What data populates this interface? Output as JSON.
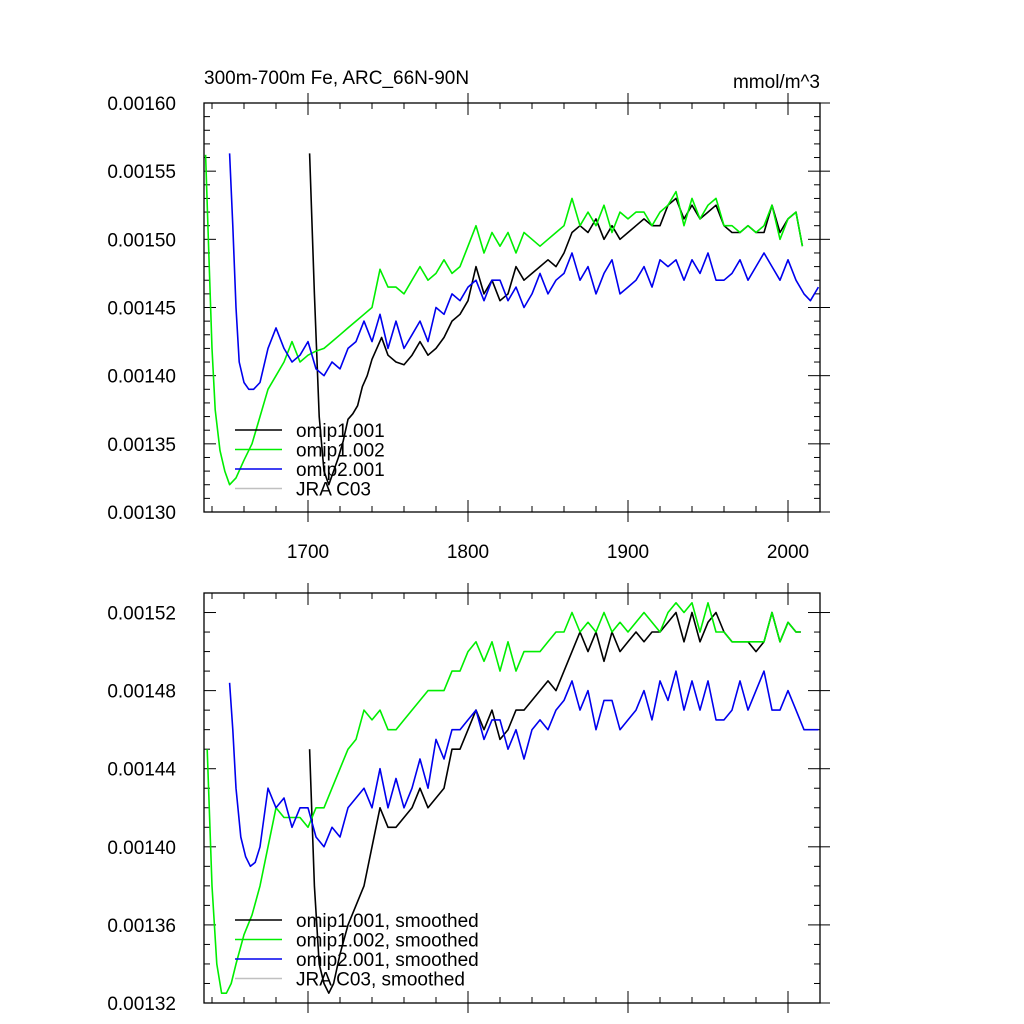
{
  "chart_data": [
    {
      "type": "line",
      "title": "300m-700m Fe, ARC_66N-90N",
      "units": "mmol/m^3",
      "xlim": [
        1635,
        2020
      ],
      "ylim": [
        0.0013,
        0.0016
      ],
      "xticks": [
        "1700",
        "1800",
        "1900",
        "2000"
      ],
      "yticks": [
        "0.00130",
        "0.00135",
        "0.00140",
        "0.00145",
        "0.00150",
        "0.00155",
        "0.00160"
      ],
      "legend_position": "lower-left",
      "series": [
        {
          "name": "omip1.001",
          "color": "#000000",
          "x": [
            1701,
            1704,
            1707,
            1710,
            1713,
            1716,
            1719,
            1722,
            1725,
            1728,
            1731,
            1734,
            1737,
            1740,
            1743,
            1746,
            1750,
            1755,
            1760,
            1765,
            1770,
            1775,
            1780,
            1785,
            1790,
            1795,
            1800,
            1805,
            1810,
            1815,
            1820,
            1825,
            1830,
            1835,
            1840,
            1845,
            1850,
            1855,
            1860,
            1865,
            1870,
            1875,
            1880,
            1885,
            1890,
            1895,
            1900,
            1905,
            1910,
            1915,
            1920,
            1925,
            1930,
            1935,
            1940,
            1945,
            1950,
            1955,
            1960,
            1965,
            1970,
            1975,
            1980,
            1985,
            1990,
            1995,
            2000,
            2005,
            2009
          ],
          "y": [
            0.001563,
            0.00146,
            0.00137,
            0.00133,
            0.00132,
            0.00133,
            0.00134,
            0.001352,
            0.001368,
            0.001372,
            0.001378,
            0.001392,
            0.0014,
            0.001412,
            0.00142,
            0.001428,
            0.001415,
            0.00141,
            0.001408,
            0.001415,
            0.001425,
            0.001415,
            0.00142,
            0.001428,
            0.00144,
            0.001445,
            0.001455,
            0.00148,
            0.00146,
            0.00147,
            0.001455,
            0.00146,
            0.00148,
            0.00147,
            0.001475,
            0.00148,
            0.001485,
            0.00148,
            0.00149,
            0.001505,
            0.00151,
            0.001505,
            0.001515,
            0.0015,
            0.00151,
            0.0015,
            0.001505,
            0.00151,
            0.001515,
            0.00151,
            0.00151,
            0.001525,
            0.00153,
            0.001515,
            0.001525,
            0.001515,
            0.00152,
            0.001525,
            0.00151,
            0.001505,
            0.001505,
            0.00151,
            0.001505,
            0.001505,
            0.001525,
            0.001505,
            0.001515,
            0.00152,
            0.001495
          ]
        },
        {
          "name": "omip1.002",
          "color": "#00ee00",
          "x": [
            1636,
            1638,
            1640,
            1642,
            1645,
            1648,
            1651,
            1655,
            1660,
            1665,
            1670,
            1675,
            1680,
            1685,
            1690,
            1695,
            1700,
            1705,
            1710,
            1715,
            1720,
            1725,
            1730,
            1735,
            1740,
            1745,
            1750,
            1755,
            1760,
            1765,
            1770,
            1775,
            1780,
            1785,
            1790,
            1795,
            1800,
            1805,
            1810,
            1815,
            1820,
            1825,
            1830,
            1835,
            1840,
            1845,
            1850,
            1855,
            1860,
            1865,
            1870,
            1875,
            1880,
            1885,
            1890,
            1895,
            1900,
            1905,
            1910,
            1915,
            1920,
            1925,
            1930,
            1935,
            1940,
            1945,
            1950,
            1955,
            1960,
            1965,
            1970,
            1975,
            1980,
            1985,
            1990,
            1995,
            2000,
            2005,
            2009
          ],
          "y": [
            0.001562,
            0.00149,
            0.00142,
            0.001375,
            0.001345,
            0.00133,
            0.00132,
            0.001325,
            0.001338,
            0.00135,
            0.00137,
            0.00139,
            0.0014,
            0.00141,
            0.001425,
            0.00141,
            0.001415,
            0.001418,
            0.00142,
            0.001425,
            0.00143,
            0.001435,
            0.00144,
            0.001445,
            0.00145,
            0.001478,
            0.001465,
            0.001465,
            0.00146,
            0.00147,
            0.00148,
            0.00147,
            0.001475,
            0.001485,
            0.001475,
            0.00148,
            0.001495,
            0.00151,
            0.00149,
            0.001505,
            0.001495,
            0.001505,
            0.00149,
            0.001505,
            0.0015,
            0.001495,
            0.0015,
            0.001505,
            0.00151,
            0.00153,
            0.00151,
            0.00152,
            0.00151,
            0.001525,
            0.001505,
            0.00152,
            0.001515,
            0.00152,
            0.00152,
            0.00151,
            0.00152,
            0.001525,
            0.001535,
            0.00151,
            0.00153,
            0.001515,
            0.001525,
            0.00153,
            0.00151,
            0.00151,
            0.001505,
            0.00151,
            0.001505,
            0.00151,
            0.001525,
            0.0015,
            0.001515,
            0.00152,
            0.001495
          ]
        },
        {
          "name": "omip2.001",
          "color": "#0000ee",
          "x": [
            1651,
            1653,
            1655,
            1657,
            1660,
            1663,
            1666,
            1670,
            1675,
            1680,
            1685,
            1690,
            1695,
            1700,
            1705,
            1710,
            1715,
            1720,
            1725,
            1730,
            1735,
            1740,
            1745,
            1750,
            1755,
            1760,
            1765,
            1770,
            1775,
            1780,
            1785,
            1790,
            1795,
            1800,
            1805,
            1810,
            1815,
            1820,
            1825,
            1830,
            1835,
            1840,
            1845,
            1850,
            1855,
            1860,
            1865,
            1870,
            1875,
            1880,
            1885,
            1890,
            1895,
            1900,
            1905,
            1910,
            1915,
            1920,
            1925,
            1930,
            1935,
            1940,
            1945,
            1950,
            1955,
            1960,
            1965,
            1970,
            1975,
            1980,
            1985,
            1990,
            1995,
            2000,
            2005,
            2010,
            2014,
            2019
          ],
          "y": [
            0.001563,
            0.00151,
            0.00145,
            0.00141,
            0.001395,
            0.00139,
            0.00139,
            0.001395,
            0.00142,
            0.001435,
            0.00142,
            0.00141,
            0.001415,
            0.001425,
            0.001405,
            0.0014,
            0.00141,
            0.001405,
            0.00142,
            0.001425,
            0.00144,
            0.001425,
            0.001445,
            0.00142,
            0.00144,
            0.00142,
            0.00143,
            0.00144,
            0.001425,
            0.00145,
            0.001445,
            0.00146,
            0.001455,
            0.001465,
            0.00147,
            0.001455,
            0.00147,
            0.00147,
            0.001455,
            0.001465,
            0.00145,
            0.00146,
            0.001475,
            0.00146,
            0.00147,
            0.001475,
            0.00149,
            0.00147,
            0.00148,
            0.00146,
            0.001475,
            0.001485,
            0.00146,
            0.001465,
            0.00147,
            0.00148,
            0.001465,
            0.001485,
            0.00148,
            0.001485,
            0.00147,
            0.001485,
            0.001475,
            0.00149,
            0.00147,
            0.00147,
            0.001475,
            0.001485,
            0.00147,
            0.00148,
            0.00149,
            0.00148,
            0.00147,
            0.001485,
            0.00147,
            0.00146,
            0.001455,
            0.001465
          ]
        },
        {
          "name": "JRA C03",
          "color": "#c0c0c0",
          "x": [],
          "y": []
        }
      ]
    },
    {
      "type": "line",
      "title": "",
      "units": "",
      "xlim": [
        1635,
        2020
      ],
      "ylim": [
        0.00132,
        0.00153
      ],
      "xticks": [],
      "yticks": [
        "0.00132",
        "0.00136",
        "0.00140",
        "0.00144",
        "0.00148",
        "0.00152"
      ],
      "legend_position": "lower-left",
      "series": [
        {
          "name": "omip1.001, smoothed",
          "color": "#000000",
          "x": [
            1701,
            1704,
            1707,
            1710,
            1713,
            1716,
            1720,
            1725,
            1730,
            1735,
            1740,
            1745,
            1750,
            1755,
            1760,
            1765,
            1770,
            1775,
            1780,
            1785,
            1790,
            1795,
            1800,
            1805,
            1810,
            1815,
            1820,
            1825,
            1830,
            1835,
            1840,
            1845,
            1850,
            1855,
            1860,
            1865,
            1870,
            1875,
            1880,
            1885,
            1890,
            1895,
            1900,
            1905,
            1910,
            1915,
            1920,
            1925,
            1930,
            1935,
            1940,
            1945,
            1950,
            1955,
            1960,
            1965,
            1970,
            1975,
            1980,
            1985,
            1990,
            1995,
            2000,
            2005,
            2008
          ],
          "y": [
            0.00145,
            0.00138,
            0.00134,
            0.00133,
            0.001325,
            0.00133,
            0.001345,
            0.00136,
            0.00137,
            0.00138,
            0.0014,
            0.00142,
            0.00141,
            0.00141,
            0.001415,
            0.00142,
            0.00143,
            0.00142,
            0.001425,
            0.00143,
            0.00145,
            0.00145,
            0.00146,
            0.00147,
            0.00146,
            0.00147,
            0.001455,
            0.00146,
            0.00147,
            0.00147,
            0.001475,
            0.00148,
            0.001485,
            0.00148,
            0.00149,
            0.0015,
            0.00151,
            0.0015,
            0.00151,
            0.001495,
            0.00151,
            0.0015,
            0.001505,
            0.00151,
            0.001505,
            0.00151,
            0.00151,
            0.001515,
            0.00152,
            0.001505,
            0.00152,
            0.001505,
            0.001515,
            0.00152,
            0.00151,
            0.001505,
            0.001505,
            0.001505,
            0.0015,
            0.001505,
            0.00152,
            0.001505,
            0.001515,
            0.00151,
            0.00151
          ]
        },
        {
          "name": "omip1.002, smoothed",
          "color": "#00ee00",
          "x": [
            1637,
            1640,
            1643,
            1646,
            1649,
            1652,
            1655,
            1660,
            1665,
            1670,
            1675,
            1680,
            1685,
            1690,
            1695,
            1700,
            1705,
            1710,
            1715,
            1720,
            1725,
            1730,
            1735,
            1740,
            1745,
            1750,
            1755,
            1760,
            1765,
            1770,
            1775,
            1780,
            1785,
            1790,
            1795,
            1800,
            1805,
            1810,
            1815,
            1820,
            1825,
            1830,
            1835,
            1840,
            1845,
            1850,
            1855,
            1860,
            1865,
            1870,
            1875,
            1880,
            1885,
            1890,
            1895,
            1900,
            1905,
            1910,
            1915,
            1920,
            1925,
            1930,
            1935,
            1940,
            1945,
            1950,
            1955,
            1960,
            1965,
            1970,
            1975,
            1980,
            1985,
            1990,
            1995,
            2000,
            2005,
            2008
          ],
          "y": [
            0.00145,
            0.00138,
            0.00134,
            0.001325,
            0.001325,
            0.00133,
            0.00134,
            0.001355,
            0.001365,
            0.00138,
            0.0014,
            0.00142,
            0.001415,
            0.001415,
            0.001415,
            0.00141,
            0.00142,
            0.00142,
            0.00143,
            0.00144,
            0.00145,
            0.001455,
            0.00147,
            0.001465,
            0.00147,
            0.00146,
            0.00146,
            0.001465,
            0.00147,
            0.001475,
            0.00148,
            0.00148,
            0.00148,
            0.00149,
            0.00149,
            0.0015,
            0.001505,
            0.001495,
            0.001505,
            0.00149,
            0.001505,
            0.00149,
            0.0015,
            0.0015,
            0.0015,
            0.001505,
            0.00151,
            0.00151,
            0.00152,
            0.00151,
            0.001515,
            0.00151,
            0.00152,
            0.00151,
            0.001515,
            0.00151,
            0.001515,
            0.00152,
            0.001515,
            0.00151,
            0.00152,
            0.001525,
            0.00152,
            0.001525,
            0.00151,
            0.001525,
            0.00151,
            0.00151,
            0.001505,
            0.001505,
            0.001505,
            0.001505,
            0.001505,
            0.00152,
            0.001505,
            0.001515,
            0.00151,
            0.00151
          ]
        },
        {
          "name": "omip2.001, smoothed",
          "color": "#0000ee",
          "x": [
            1651,
            1653,
            1655,
            1658,
            1661,
            1664,
            1667,
            1670,
            1675,
            1680,
            1685,
            1690,
            1695,
            1700,
            1705,
            1710,
            1715,
            1720,
            1725,
            1730,
            1735,
            1740,
            1745,
            1750,
            1755,
            1760,
            1765,
            1770,
            1775,
            1780,
            1785,
            1790,
            1795,
            1800,
            1805,
            1810,
            1815,
            1820,
            1825,
            1830,
            1835,
            1840,
            1845,
            1850,
            1855,
            1860,
            1865,
            1870,
            1875,
            1880,
            1885,
            1890,
            1895,
            1900,
            1905,
            1910,
            1915,
            1920,
            1925,
            1930,
            1935,
            1940,
            1945,
            1950,
            1955,
            1960,
            1965,
            1970,
            1975,
            1980,
            1985,
            1990,
            1995,
            2000,
            2005,
            2010,
            2015,
            2019
          ],
          "y": [
            0.001484,
            0.00146,
            0.00143,
            0.001405,
            0.001395,
            0.00139,
            0.001392,
            0.0014,
            0.00143,
            0.00142,
            0.001425,
            0.00141,
            0.00142,
            0.00142,
            0.001405,
            0.0014,
            0.00141,
            0.001405,
            0.00142,
            0.001425,
            0.00143,
            0.00142,
            0.00144,
            0.00142,
            0.001435,
            0.00142,
            0.00143,
            0.001445,
            0.00143,
            0.001455,
            0.001445,
            0.00146,
            0.00146,
            0.001465,
            0.00147,
            0.001455,
            0.001465,
            0.001465,
            0.00145,
            0.00146,
            0.001445,
            0.00146,
            0.001465,
            0.00146,
            0.00147,
            0.001475,
            0.001485,
            0.00147,
            0.00148,
            0.00146,
            0.001475,
            0.001475,
            0.00146,
            0.001465,
            0.00147,
            0.00148,
            0.001465,
            0.001485,
            0.001475,
            0.00149,
            0.00147,
            0.001485,
            0.00147,
            0.001485,
            0.001465,
            0.001465,
            0.00147,
            0.001485,
            0.00147,
            0.00148,
            0.00149,
            0.00147,
            0.00147,
            0.00148,
            0.00147,
            0.00146,
            0.00146,
            0.00146
          ]
        },
        {
          "name": "JRA C03, smoothed",
          "color": "#c0c0c0",
          "x": [],
          "y": []
        }
      ]
    }
  ]
}
